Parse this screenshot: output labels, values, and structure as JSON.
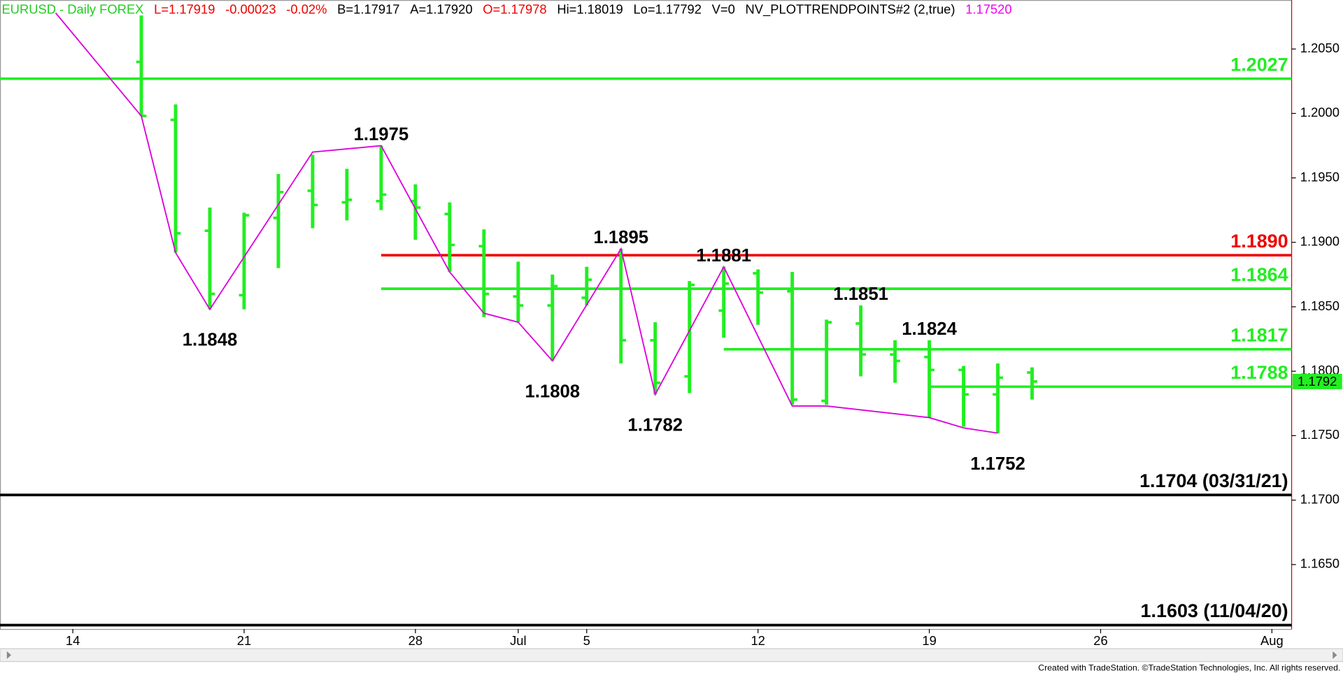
{
  "chart_data": {
    "type": "ohlc",
    "header": [
      {
        "text": "EURUSD - Daily  FOREX",
        "color": "#22cc22"
      },
      {
        "text": "L=1.17919",
        "color": "#ee0000"
      },
      {
        "text": "-0.00023",
        "color": "#ee0000"
      },
      {
        "text": "-0.02%",
        "color": "#ee0000"
      },
      {
        "text": "B=1.17917",
        "color": "#000000"
      },
      {
        "text": "A=1.17920",
        "color": "#000000"
      },
      {
        "text": "O=1.17978",
        "color": "#ee0000"
      },
      {
        "text": "Hi=1.18019",
        "color": "#000000"
      },
      {
        "text": "Lo=1.17792",
        "color": "#000000"
      },
      {
        "text": "V=0",
        "color": "#000000"
      },
      {
        "text": "NV_PLOTTRENDPOINTS#2 (2,true)",
        "color": "#000000"
      },
      {
        "text": "1.17520",
        "color": "#ee00ee"
      }
    ],
    "color": "#22ee22",
    "x": [
      2,
      3,
      4,
      5,
      6,
      7,
      8,
      9,
      10,
      11,
      12,
      13,
      14,
      15,
      16,
      17,
      18,
      19,
      20,
      21,
      22,
      23,
      24,
      25,
      26,
      27,
      28
    ],
    "open": [
      1.204,
      1.1995,
      1.1909,
      1.1859,
      1.1919,
      1.194,
      1.1931,
      1.1932,
      1.1932,
      1.1922,
      1.1897,
      1.1858,
      1.1851,
      1.1857,
      1.1864,
      1.1824,
      1.1796,
      1.1847,
      1.1876,
      1.1862,
      1.1777,
      1.1837,
      1.1813,
      1.1811,
      1.1801,
      1.1782,
      1.1799
    ],
    "high": [
      1.2076,
      1.2007,
      1.1927,
      1.1923,
      1.1953,
      1.1968,
      1.1957,
      1.1975,
      1.1945,
      1.1931,
      1.191,
      1.1885,
      1.1875,
      1.1881,
      1.1895,
      1.1838,
      1.187,
      1.1881,
      1.1879,
      1.1877,
      1.184,
      1.1851,
      1.1824,
      1.1824,
      1.1804,
      1.1806,
      1.1803
    ],
    "low": [
      1.1998,
      1.1892,
      1.1848,
      1.1848,
      1.188,
      1.1911,
      1.1917,
      1.1925,
      1.1902,
      1.1877,
      1.1842,
      1.1838,
      1.1808,
      1.1851,
      1.1806,
      1.1782,
      1.1783,
      1.1826,
      1.1836,
      1.1774,
      1.1774,
      1.1796,
      1.1791,
      1.1764,
      1.1757,
      1.1752,
      1.1778
    ],
    "close": [
      1.1998,
      1.1907,
      1.186,
      1.1921,
      1.1939,
      1.1929,
      1.1933,
      1.1937,
      1.1927,
      1.1898,
      1.186,
      1.1851,
      1.1866,
      1.1871,
      1.1824,
      1.1791,
      1.1867,
      1.1868,
      1.1861,
      1.1778,
      1.1838,
      1.1813,
      1.1808,
      1.1801,
      1.1782,
      1.1795,
      1.1792
    ],
    "trend": {
      "color": "#dd00dd",
      "x": [
        -0.5,
        2,
        3,
        4,
        7,
        9,
        11,
        12,
        13,
        14,
        16,
        17,
        19,
        21,
        22,
        25,
        26,
        27
      ],
      "values": [
        1.2078,
        1.1998,
        1.1892,
        1.1848,
        1.197,
        1.1975,
        1.1877,
        1.1845,
        1.1838,
        1.1808,
        1.1895,
        1.1782,
        1.1881,
        1.1773,
        1.1773,
        1.1764,
        1.1756,
        1.1752
      ],
      "value_labels": [
        null,
        null,
        null,
        "1.1848",
        null,
        "1.1975",
        null,
        null,
        null,
        "1.1808",
        "1.1895",
        "1.1782",
        "1.1881",
        null,
        null,
        null,
        null,
        "1.1752"
      ]
    },
    "annotations": [
      {
        "text": "1.1851",
        "x": 23,
        "value": 1.1851
      },
      {
        "text": "1.1824",
        "x": 25,
        "value": 1.1824
      }
    ],
    "levels": [
      {
        "value": 1.2027,
        "label": "1.2027",
        "color": "#22ee22"
      },
      {
        "value": 1.189,
        "label": "1.1890",
        "color": "#ee0000",
        "from": 9
      },
      {
        "value": 1.1864,
        "label": "1.1864",
        "color": "#22ee22",
        "from": 9
      },
      {
        "value": 1.1817,
        "label": "1.1817",
        "color": "#22ee22",
        "from": 19
      },
      {
        "value": 1.1788,
        "label": "1.1788",
        "color": "#22ee22",
        "from": 25
      },
      {
        "value": 1.1704,
        "label": "1.1704 (03/31/21)",
        "color": "#000000"
      },
      {
        "value": 1.1603,
        "label": "1.1603 (11/04/20)",
        "color": "#000000"
      }
    ],
    "last_price": 1.1792,
    "xlim": [
      -2.125,
      35.575
    ],
    "ylim": [
      1.16,
      1.2088
    ],
    "xticks": [
      {
        "value": 0,
        "label": "14"
      },
      {
        "value": 5,
        "label": "21"
      },
      {
        "value": 10,
        "label": "28"
      },
      {
        "value": 13,
        "label": "Jul"
      },
      {
        "value": 15,
        "label": "5"
      },
      {
        "value": 20,
        "label": "12"
      },
      {
        "value": 25,
        "label": "19"
      },
      {
        "value": 30,
        "label": "26"
      },
      {
        "value": 35,
        "label": "Aug"
      }
    ],
    "yticks": [
      {
        "value": 1.165,
        "label": "1.1650"
      },
      {
        "value": 1.17,
        "label": "1.1700"
      },
      {
        "value": 1.175,
        "label": "1.1750"
      },
      {
        "value": 1.18,
        "label": "1.1800"
      },
      {
        "value": 1.185,
        "label": "1.1850"
      },
      {
        "value": 1.19,
        "label": "1.1900"
      },
      {
        "value": 1.195,
        "label": "1.1950"
      },
      {
        "value": 1.2,
        "label": "1.2000"
      },
      {
        "value": 1.205,
        "label": "1.2050"
      }
    ],
    "footer": "Created with TradeStation. ©TradeStation Technologies, Inc. All rights reserved."
  }
}
